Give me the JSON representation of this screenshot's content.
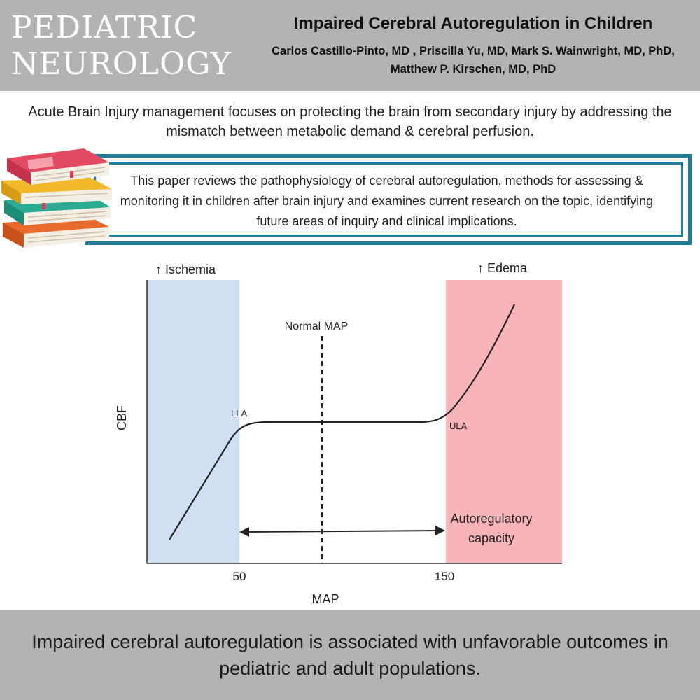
{
  "header": {
    "journal_line1": "PEDIATRIC",
    "journal_line2": "NEUROLOGY",
    "title": "Impaired Cerebral Autoregulation in Children",
    "authors": "Carlos Castillo-Pinto, MD , Priscilla Yu, MD, Mark S. Wainwright, MD, PhD, Matthew P. Kirschen, MD, PhD"
  },
  "intro": "Acute Brain Injury management focuses on protecting the brain from secondary injury by addressing the mismatch between metabolic demand & cerebral perfusion.",
  "summary": "This paper reviews the pathophysiology of cerebral autoregulation, methods for assessing & monitoring it in children after brain injury and examines current research on the topic, identifying future areas of inquiry and clinical implications.",
  "colors": {
    "header_bg": "#b3b3b3",
    "box_border": "#1e7e98",
    "ischemia_zone": "#cfe0f2",
    "edema_zone": "#f8b4b9"
  },
  "books_icon": "stack-of-books-icon",
  "chart_data": {
    "type": "line",
    "xlabel": "MAP",
    "ylabel": "CBF",
    "x_ticks": [
      "50",
      "150"
    ],
    "zones": {
      "left": "↑ Ischemia",
      "right": "↑ Edema"
    },
    "normal_map_label": "Normal MAP",
    "lla_label": "LLA",
    "ula_label": "ULA",
    "capacity_label_line1": "Autoregulatory",
    "capacity_label_line2": "capacity"
  },
  "footer": "Impaired cerebral autoregulation is associated with unfavorable outcomes in pediatric and adult populations."
}
